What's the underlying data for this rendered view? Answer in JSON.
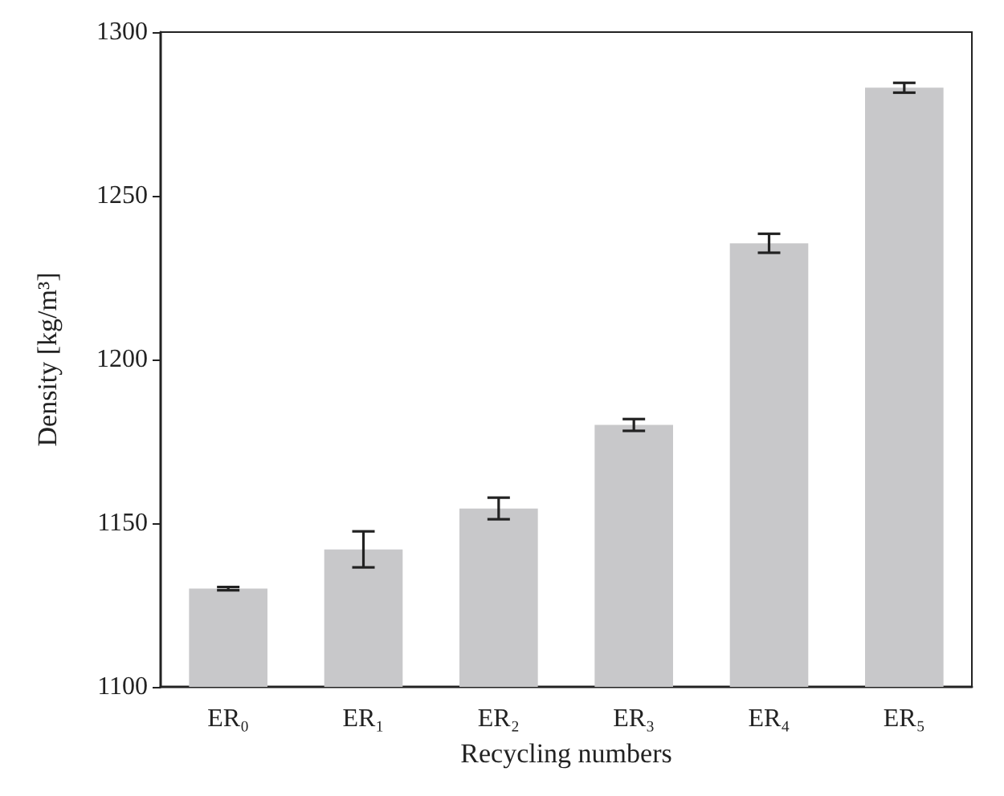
{
  "chart_data": {
    "type": "bar",
    "xlabel": "Recycling numbers",
    "ylabel": "Density [kg/m³]",
    "categories": [
      "ER₀",
      "ER₁",
      "ER₂",
      "ER₃",
      "ER₄",
      "ER₅"
    ],
    "values": [
      1130,
      1142,
      1154.5,
      1180,
      1235.5,
      1283
    ],
    "errors": [
      0.5,
      5.5,
      3.3,
      1.8,
      2.9,
      1.5
    ],
    "color": "#c8c8ca",
    "ylim": [
      1100,
      1300
    ],
    "yticks": [
      1100,
      1150,
      1200,
      1250,
      1300
    ],
    "grid": false
  }
}
